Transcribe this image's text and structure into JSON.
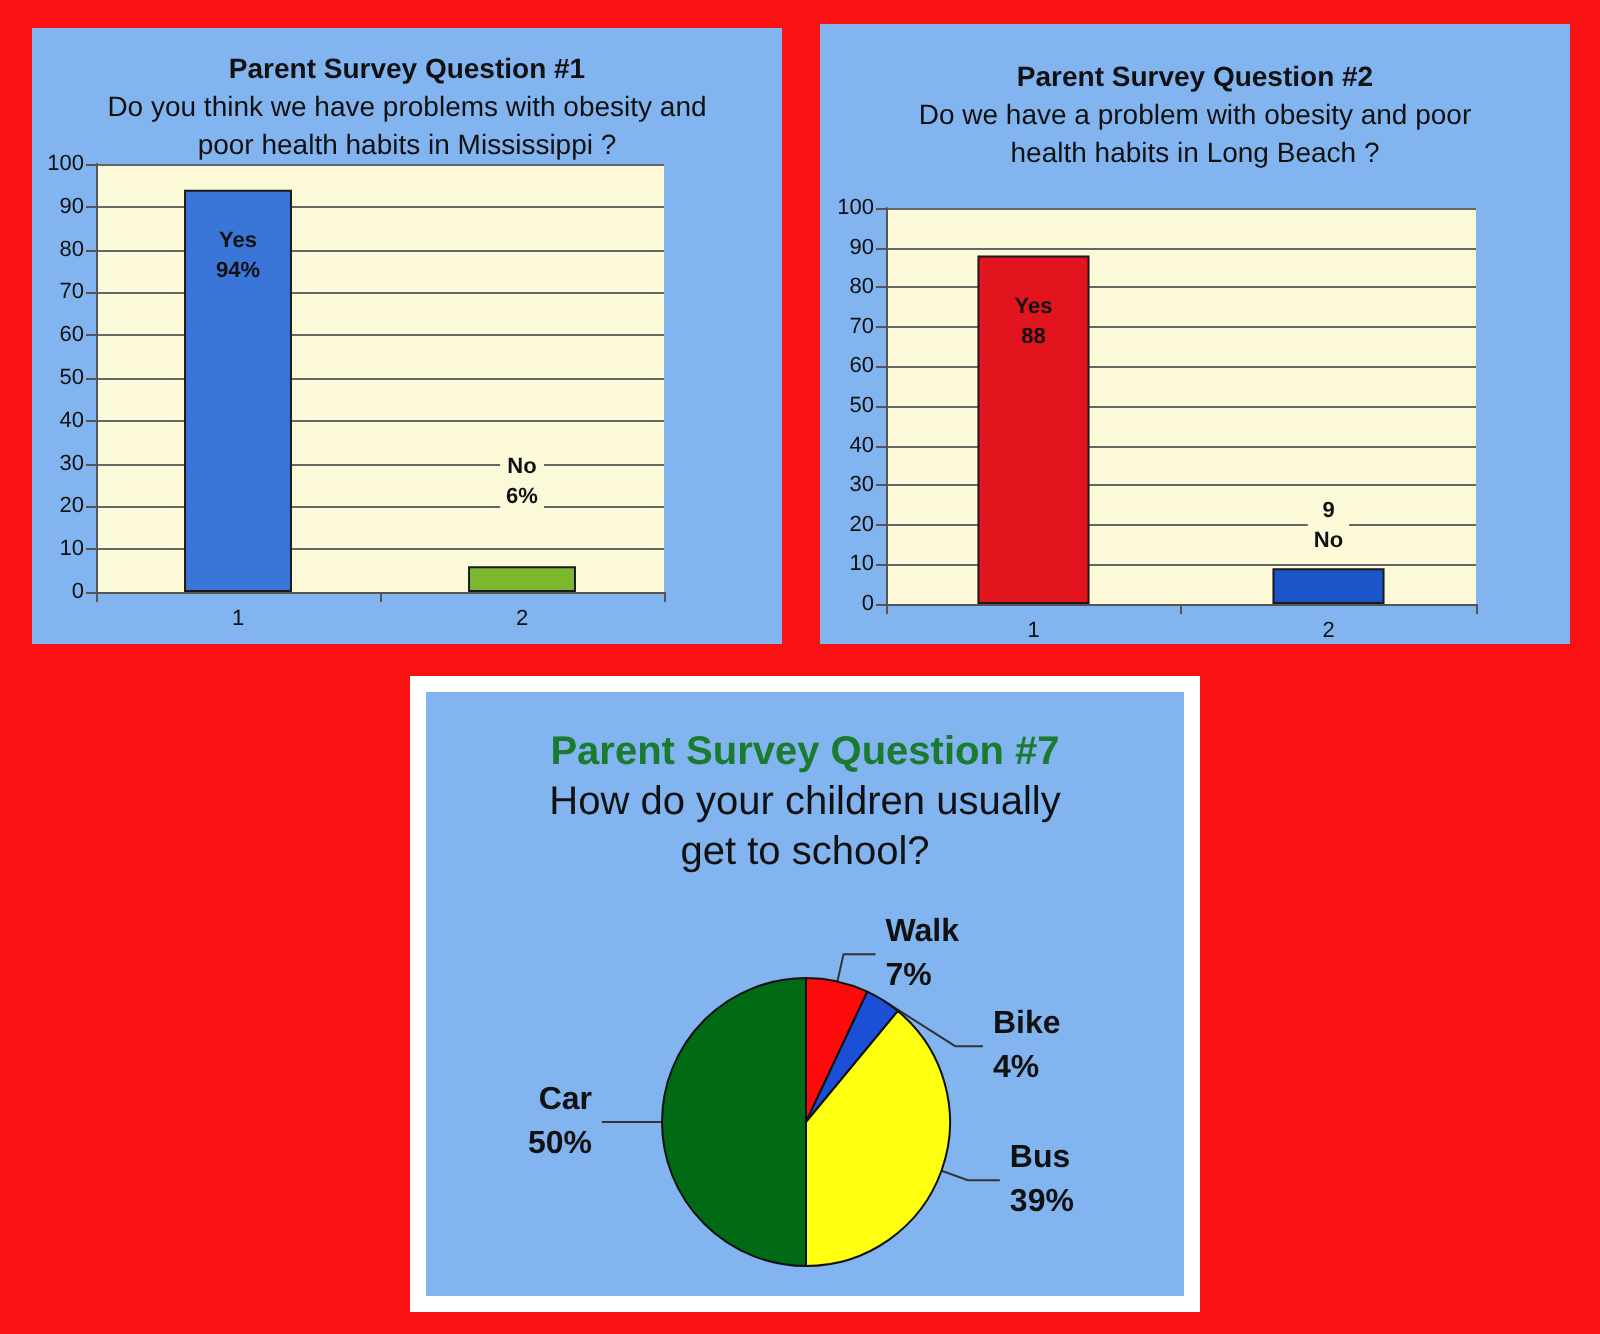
{
  "chart_data": [
    {
      "type": "bar",
      "title": "Parent Survey Question #1",
      "subtitle": "Do you think we have problems with obesity and poor health habits in Mississippi ?",
      "categories": [
        "1",
        "2"
      ],
      "values": [
        94,
        6
      ],
      "colors": [
        "#3a76d8",
        "#7ab82e"
      ],
      "value_labels": [
        "Yes\n94%",
        "No\n6%"
      ],
      "ylim": [
        0,
        100
      ],
      "yticks": [
        0,
        10,
        20,
        30,
        40,
        50,
        60,
        70,
        80,
        90,
        100
      ],
      "grid": "y"
    },
    {
      "type": "bar",
      "title": "Parent Survey Question #2",
      "subtitle": "Do we have a problem with obesity and poor health habits in Long Beach ?",
      "categories": [
        "1",
        "2"
      ],
      "values": [
        88,
        9
      ],
      "colors": [
        "#e2141e",
        "#1a56c8"
      ],
      "value_labels": [
        "Yes\n88",
        "9\nNo"
      ],
      "ylim": [
        0,
        100
      ],
      "yticks": [
        0,
        10,
        20,
        30,
        40,
        50,
        60,
        70,
        80,
        90,
        100
      ],
      "grid": "y"
    },
    {
      "type": "pie",
      "title": "Parent Survey Question #7",
      "subtitle": "How do your children usually get to school?",
      "categories": [
        "Walk",
        "Bike",
        "Bus",
        "Car"
      ],
      "values": [
        7,
        4,
        39,
        50
      ],
      "colors": [
        "#ff0a0a",
        "#1a4fd6",
        "#ffff10",
        "#006a14"
      ],
      "value_labels": [
        "7%",
        "4%",
        "39%",
        "50%"
      ]
    }
  ]
}
